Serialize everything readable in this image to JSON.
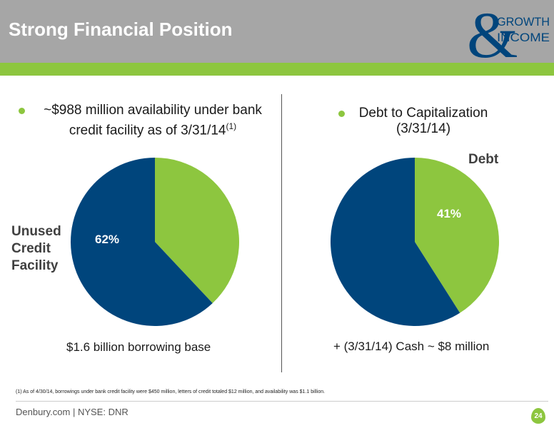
{
  "header": {
    "title": "Strong Financial Position",
    "logo": {
      "ampersand": "&",
      "line1": "GROWTH",
      "line2": "INCOME"
    }
  },
  "left_panel": {
    "bullet_line1": "~$988 million availability under bank",
    "bullet_line2": "credit facility as of 3/31/14",
    "bullet_sup": "(1)",
    "side_label": [
      "Unused",
      "Credit",
      "Facility"
    ],
    "caption": "$1.6 billion borrowing base"
  },
  "right_panel": {
    "bullet_line1": "Debt to Capitalization",
    "bullet_line2": "(3/31/14)",
    "caption": "+ (3/31/14) Cash ~ $8 million"
  },
  "colors": {
    "navy": "#00457c",
    "green": "#8dc63f",
    "header_gray": "#a6a6a6"
  },
  "chart_data": [
    {
      "type": "pie",
      "slices": [
        {
          "label": "Unused Credit Facility",
          "value": 62,
          "value_label": "62%",
          "color": "#00457c"
        },
        {
          "label": "",
          "value": 38,
          "value_label": "",
          "color": "#8dc63f"
        }
      ]
    },
    {
      "type": "pie",
      "slices": [
        {
          "label": "Debt",
          "value": 41,
          "value_label": "41%",
          "color": "#8dc63f"
        },
        {
          "label": "",
          "value": 59,
          "value_label": "",
          "color": "#00457c"
        }
      ]
    }
  ],
  "footnote": "(1)   As of 4/30/14, borrowings under bank credit facility were $450 million, letters of credit totaled $12 million, and availability was $1.1 billion.",
  "footer": {
    "text": "Denbury.com | NYSE: DNR",
    "page_number": "24"
  }
}
